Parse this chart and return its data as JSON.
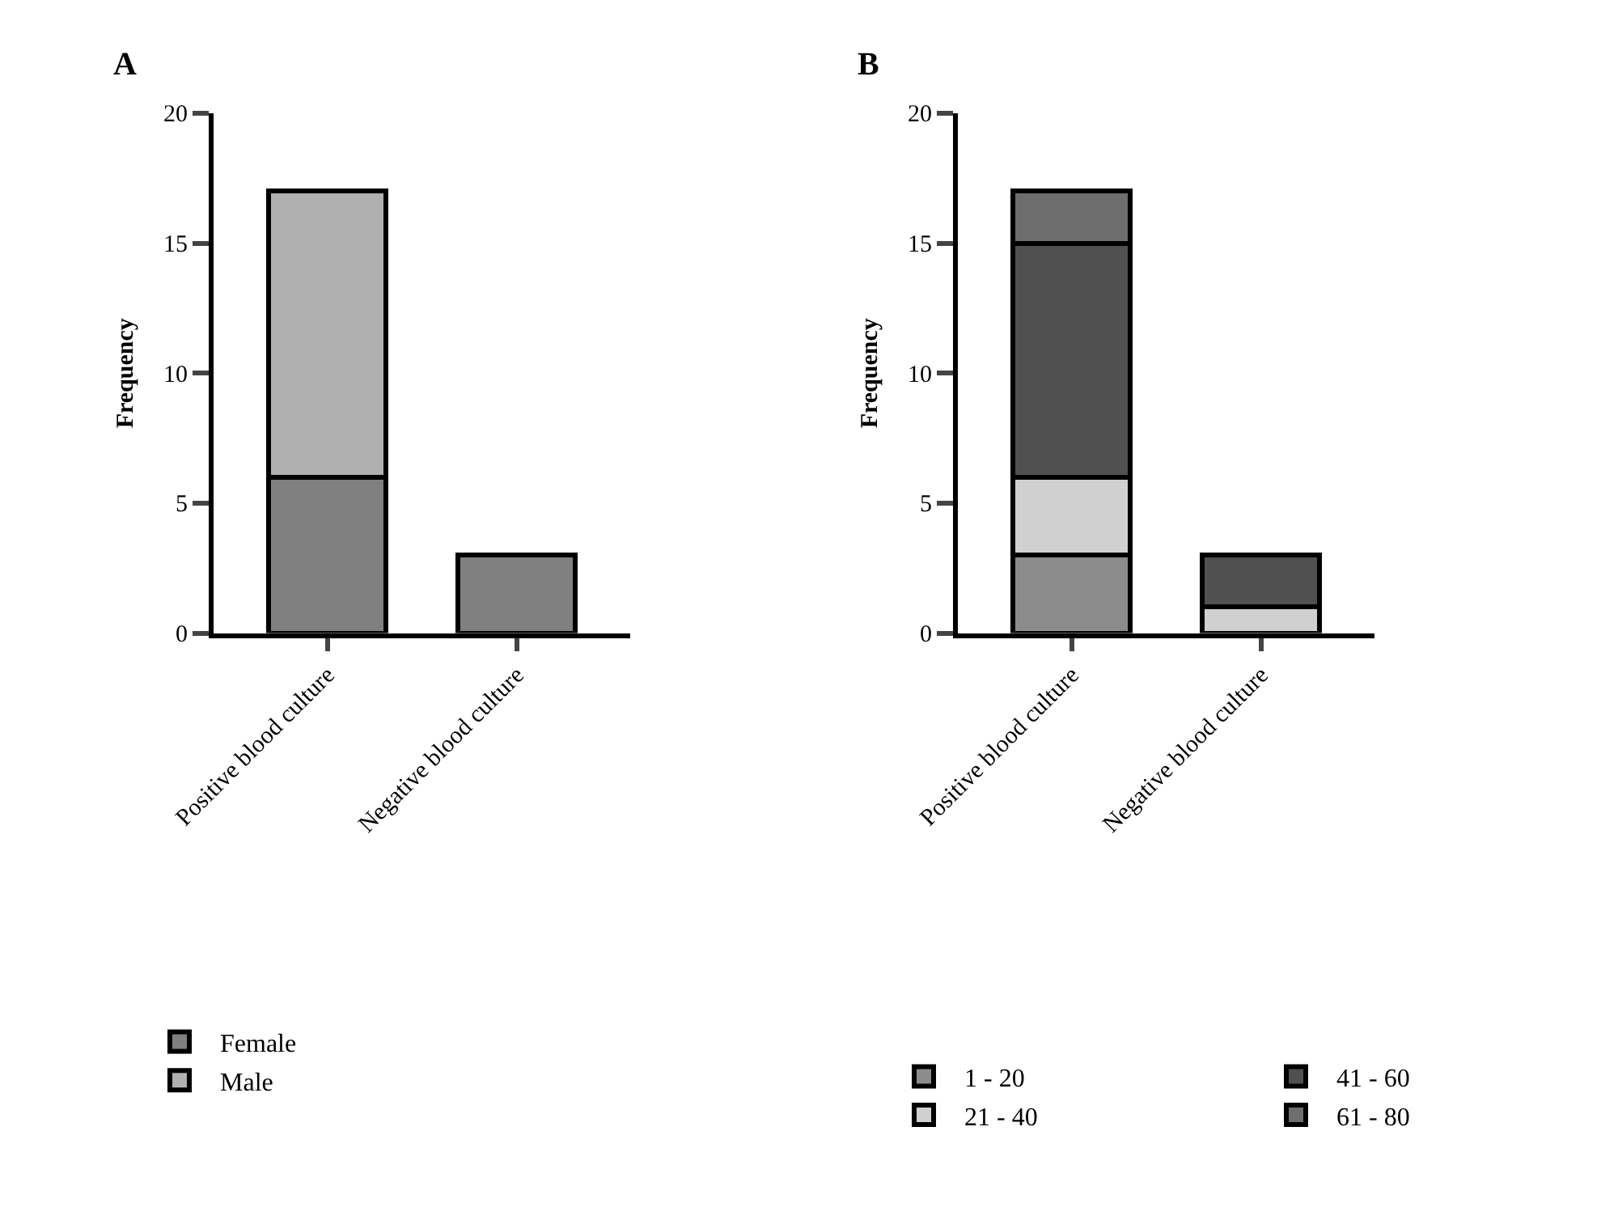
{
  "chart_data": [
    {
      "type": "bar",
      "stacked": true,
      "title": "A",
      "ylabel": "Frequency",
      "categories": [
        "Positive blood culture",
        "Negative blood culture"
      ],
      "ylim": [
        0,
        20
      ],
      "yticks": [
        0,
        5,
        10,
        15,
        20
      ],
      "grid": false,
      "legend": "bottom",
      "series": [
        {
          "name": "Female",
          "color": "#808080",
          "values": [
            6,
            3
          ]
        },
        {
          "name": "Male",
          "color": "#b0b0b0",
          "values": [
            11,
            null
          ]
        }
      ]
    },
    {
      "type": "bar",
      "stacked": true,
      "title": "B",
      "ylabel": "Frequency",
      "categories": [
        "Positive blood culture",
        "Negative blood culture"
      ],
      "ylim": [
        0,
        20
      ],
      "yticks": [
        0,
        5,
        10,
        15,
        20
      ],
      "grid": false,
      "legend": "bottom",
      "series": [
        {
          "name": "1 - 20",
          "color": "#8c8c8c",
          "values": [
            3,
            null
          ]
        },
        {
          "name": "21 - 40",
          "color": "#d0d0d0",
          "values": [
            3,
            1
          ]
        },
        {
          "name": "41 - 60",
          "color": "#505050",
          "values": [
            9,
            2
          ]
        },
        {
          "name": "61 - 80",
          "color": "#6e6e6e",
          "values": [
            2,
            null
          ]
        }
      ]
    }
  ]
}
